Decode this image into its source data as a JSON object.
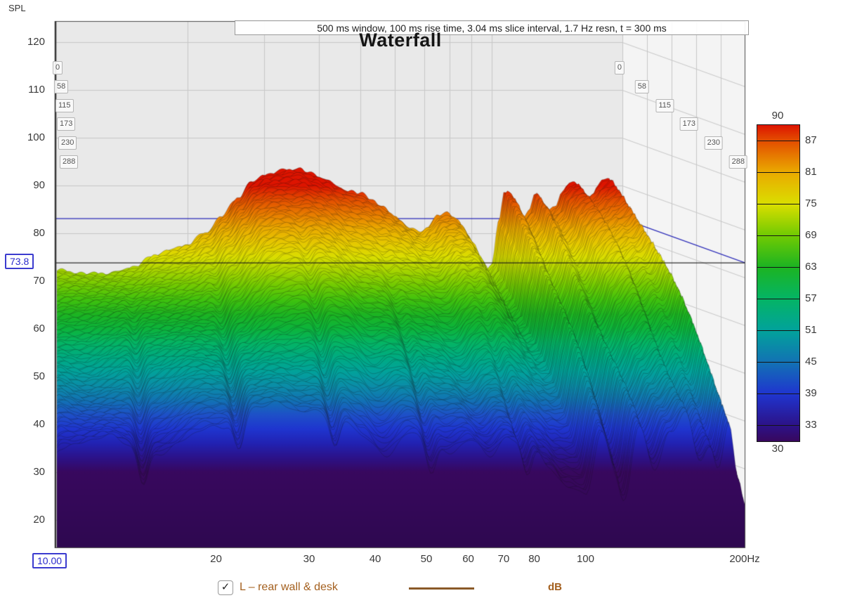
{
  "title": "Waterfall",
  "info_bar": "500 ms window, 100 ms rise time, 3.04 ms slice interval, 1.7 Hz resn, t = 300 ms",
  "spl_axis_label": "SPL",
  "cursor": {
    "spl_readout": "73.8",
    "freq_readout": "10.00"
  },
  "y_ticks": [
    120,
    110,
    100,
    90,
    80,
    70,
    60,
    50,
    40,
    30,
    20
  ],
  "x_ticks": [
    {
      "f": 20,
      "label": "20"
    },
    {
      "f": 30,
      "label": "30"
    },
    {
      "f": 40,
      "label": "40"
    },
    {
      "f": 50,
      "label": "50"
    },
    {
      "f": 60,
      "label": "60"
    },
    {
      "f": 70,
      "label": "70"
    },
    {
      "f": 80,
      "label": "80"
    },
    {
      "f": 100,
      "label": "100"
    },
    {
      "f": 200,
      "label": "200Hz"
    }
  ],
  "time_slice_labels": [
    0,
    58,
    115,
    173,
    230,
    288
  ],
  "colorbar_ui": {
    "top_label": "90",
    "bottom_label": "30",
    "side_labels": [
      87,
      81,
      75,
      69,
      63,
      57,
      51,
      45,
      39,
      33
    ]
  },
  "legend": {
    "checked": true,
    "check_glyph": "✓",
    "label": "L – rear wall & desk",
    "unit_label": "dB",
    "line_color": "#8a5a28"
  },
  "chart_data": {
    "type": "waterfall",
    "title": "Waterfall",
    "window_info": "500 ms window, 100 ms rise time, 3.04 ms slice interval, 1.7 Hz resn, t = 300 ms",
    "x_axis": {
      "label": "Hz",
      "scale": "log",
      "min": 10,
      "max": 200,
      "ticks": [
        20,
        30,
        40,
        50,
        60,
        70,
        80,
        100,
        200
      ],
      "cursor_hz": "10.00"
    },
    "y_axis": {
      "label": "SPL",
      "unit": "dB",
      "min": 20,
      "max": 120,
      "tick_step": 10,
      "cursor_db": 73.8
    },
    "time_axis": {
      "unit": "ms",
      "min": 0,
      "max": 300,
      "slice_interval_ms": 3.04,
      "slice_gridlines_ms": [
        0,
        58,
        115,
        173,
        230,
        288
      ]
    },
    "colorbar": {
      "min_db": 30,
      "max_db": 90,
      "labeled_levels": [
        90,
        87,
        81,
        75,
        69,
        63,
        57,
        51,
        45,
        39,
        33,
        30
      ]
    },
    "colormap_db_hex": {
      "30": "#38085e",
      "33": "#2c1288",
      "36": "#2222b2",
      "39": "#1f35cf",
      "42": "#1e50c8",
      "45": "#1272b4",
      "48": "#0b8da8",
      "51": "#02a29b",
      "54": "#00ab82",
      "57": "#04b465",
      "60": "#0cb43c",
      "63": "#1cb422",
      "66": "#3fc20e",
      "69": "#70ca02",
      "72": "#a4d400",
      "75": "#dade00",
      "78": "#e6c800",
      "81": "#eaaa00",
      "84": "#e87c00",
      "87": "#e34e00",
      "90": "#dd1400"
    },
    "series": [
      {
        "name": "L – rear wall & desk",
        "visible": true,
        "legend_color": "#8a5a28",
        "spl_db_at_t0_ms": [
          [
            10,
            62.5
          ],
          [
            11.5,
            62
          ],
          [
            13,
            62.5
          ],
          [
            15,
            64
          ],
          [
            17,
            66.5
          ],
          [
            18.5,
            67.2
          ],
          [
            20,
            68
          ],
          [
            22,
            70.5
          ],
          [
            24,
            74
          ],
          [
            26,
            78
          ],
          [
            28,
            81.5
          ],
          [
            30,
            83.2
          ],
          [
            32,
            83.8
          ],
          [
            34,
            84.6
          ],
          [
            36,
            84.6
          ],
          [
            38,
            83.6
          ],
          [
            41,
            82.4
          ],
          [
            44,
            80.5
          ],
          [
            47,
            79.3
          ],
          [
            50,
            78.6
          ],
          [
            53,
            77.3
          ],
          [
            56,
            75.8
          ],
          [
            60,
            73.8
          ],
          [
            64,
            71.8
          ],
          [
            68,
            70.8
          ],
          [
            71,
            72.2
          ],
          [
            75,
            74.6
          ],
          [
            79,
            75.2
          ],
          [
            83,
            74
          ],
          [
            88,
            70.5
          ],
          [
            93,
            66.5
          ],
          [
            97,
            63.2
          ],
          [
            100,
            64.5
          ],
          [
            104,
            73
          ],
          [
            107,
            79.5
          ],
          [
            110,
            79
          ],
          [
            114,
            76
          ],
          [
            118,
            73.5
          ],
          [
            122,
            75
          ],
          [
            126,
            78.8
          ],
          [
            130,
            77
          ],
          [
            135,
            74.8
          ],
          [
            140,
            76
          ],
          [
            145,
            79.5
          ],
          [
            150,
            81
          ],
          [
            155,
            81.6
          ],
          [
            160,
            80
          ],
          [
            165,
            78.5
          ],
          [
            170,
            79.5
          ],
          [
            175,
            81
          ],
          [
            180,
            82
          ],
          [
            186,
            82.6
          ],
          [
            191,
            80.5
          ],
          [
            195,
            76
          ],
          [
            200,
            70
          ]
        ],
        "spl_db_at_t300_ms": [
          [
            10,
            34
          ],
          [
            13,
            36
          ],
          [
            16,
            37
          ],
          [
            20,
            39
          ],
          [
            24,
            41
          ],
          [
            28,
            43
          ],
          [
            31,
            44
          ],
          [
            34,
            43
          ],
          [
            38,
            40
          ],
          [
            42,
            36
          ],
          [
            46,
            38
          ],
          [
            50,
            36
          ],
          [
            55,
            33
          ],
          [
            60,
            35
          ],
          [
            66,
            31
          ],
          [
            72,
            36
          ],
          [
            79,
            38
          ],
          [
            85,
            33
          ],
          [
            93,
            28
          ],
          [
            100,
            27
          ],
          [
            107,
            40
          ],
          [
            114,
            32
          ],
          [
            120,
            30
          ],
          [
            126,
            37
          ],
          [
            135,
            28
          ],
          [
            145,
            37
          ],
          [
            155,
            43
          ],
          [
            165,
            33
          ],
          [
            175,
            38
          ],
          [
            186,
            43
          ],
          [
            195,
            30
          ],
          [
            200,
            25
          ]
        ]
      }
    ]
  }
}
